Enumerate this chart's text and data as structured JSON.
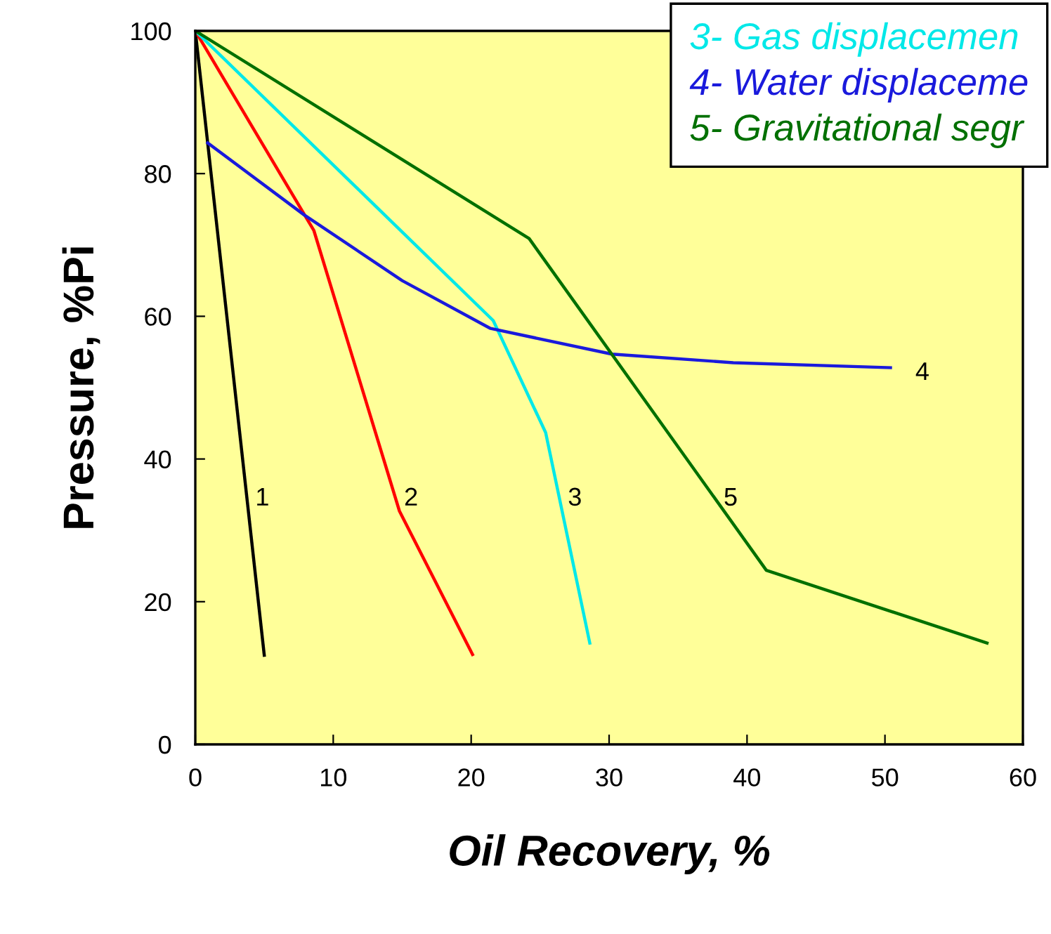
{
  "chart_data": {
    "type": "line",
    "xlabel": "Oil Recovery, %",
    "ylabel": "Pressure, %Pi",
    "xlim": [
      0,
      60
    ],
    "xticks": [
      0,
      10,
      20,
      30,
      40,
      50,
      60
    ],
    "ylim": [
      0,
      100
    ],
    "yticks": [
      0,
      20,
      40,
      60,
      80,
      100
    ],
    "grid": false,
    "legend": "top right",
    "marker": "none",
    "line_style": "solid",
    "series": [
      {
        "color": "#000000",
        "x": [
          0,
          5
        ],
        "values": [
          100,
          12.5
        ]
      },
      {
        "color": "#ff0000",
        "x": [
          0,
          8.6,
          14.8,
          20.1
        ],
        "values": [
          100,
          72,
          32.7,
          12.6
        ]
      },
      {
        "name": "3- Gas displacemen",
        "color": "#00e8e8",
        "x": [
          0,
          21.6,
          25.4,
          28.6
        ],
        "values": [
          100,
          59.4,
          43.7,
          14.2
        ]
      },
      {
        "name": "4- Water displaceme",
        "color": "#1a1adc",
        "x": [
          0.9,
          7.9,
          15,
          21.4,
          30.2,
          39,
          50.4
        ],
        "values": [
          84.3,
          74.2,
          65,
          58.3,
          54.7,
          53.5,
          52.8
        ]
      },
      {
        "name": "5- Gravitational segr",
        "color": "#007000",
        "x": [
          0,
          24.2,
          41.4,
          57.4
        ],
        "values": [
          100,
          70.9,
          24.4,
          14.2
        ]
      }
    ],
    "annotations": [
      "1",
      "2",
      "3",
      "4",
      "5"
    ]
  }
}
